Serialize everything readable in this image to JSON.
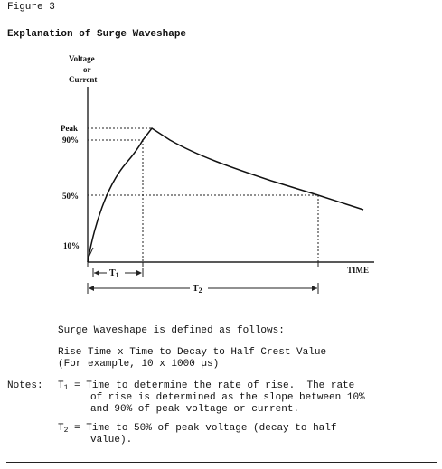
{
  "header": {
    "figure_label": "Figure 3",
    "section_title": "Explanation of Surge Waveshape"
  },
  "diagram": {
    "y_axis_label_line1": "Voltage",
    "y_axis_label_line2": "or",
    "y_axis_label_line3": "Current",
    "y_ticks": {
      "peak": "Peak",
      "p90": "90%",
      "p50": "50%",
      "p10": "10%"
    },
    "x_axis_label": "TIME",
    "t1_label": "T",
    "t1_sub": "1",
    "t2_label": "T",
    "t2_sub": "2"
  },
  "body": {
    "defined_as": "Surge Waveshape is defined as follows:",
    "rise_time_line": "Rise Time x Time to Decay to Half Crest Value",
    "example_line": "(For example, 10 x 1000 µs)",
    "notes_label": "Notes:",
    "t1_symbol": "T",
    "t1_symbol_sub": "1",
    "t1_line1": " = Time to determine the rate of rise.  The rate",
    "t1_line2": "of rise is determined as the slope between 10%",
    "t1_line3": "and 90% of peak voltage or current.",
    "t2_symbol": "T",
    "t2_symbol_sub": "2",
    "t2_line1": " = Time to 50% of peak voltage (decay to half",
    "t2_line2": "value)."
  }
}
